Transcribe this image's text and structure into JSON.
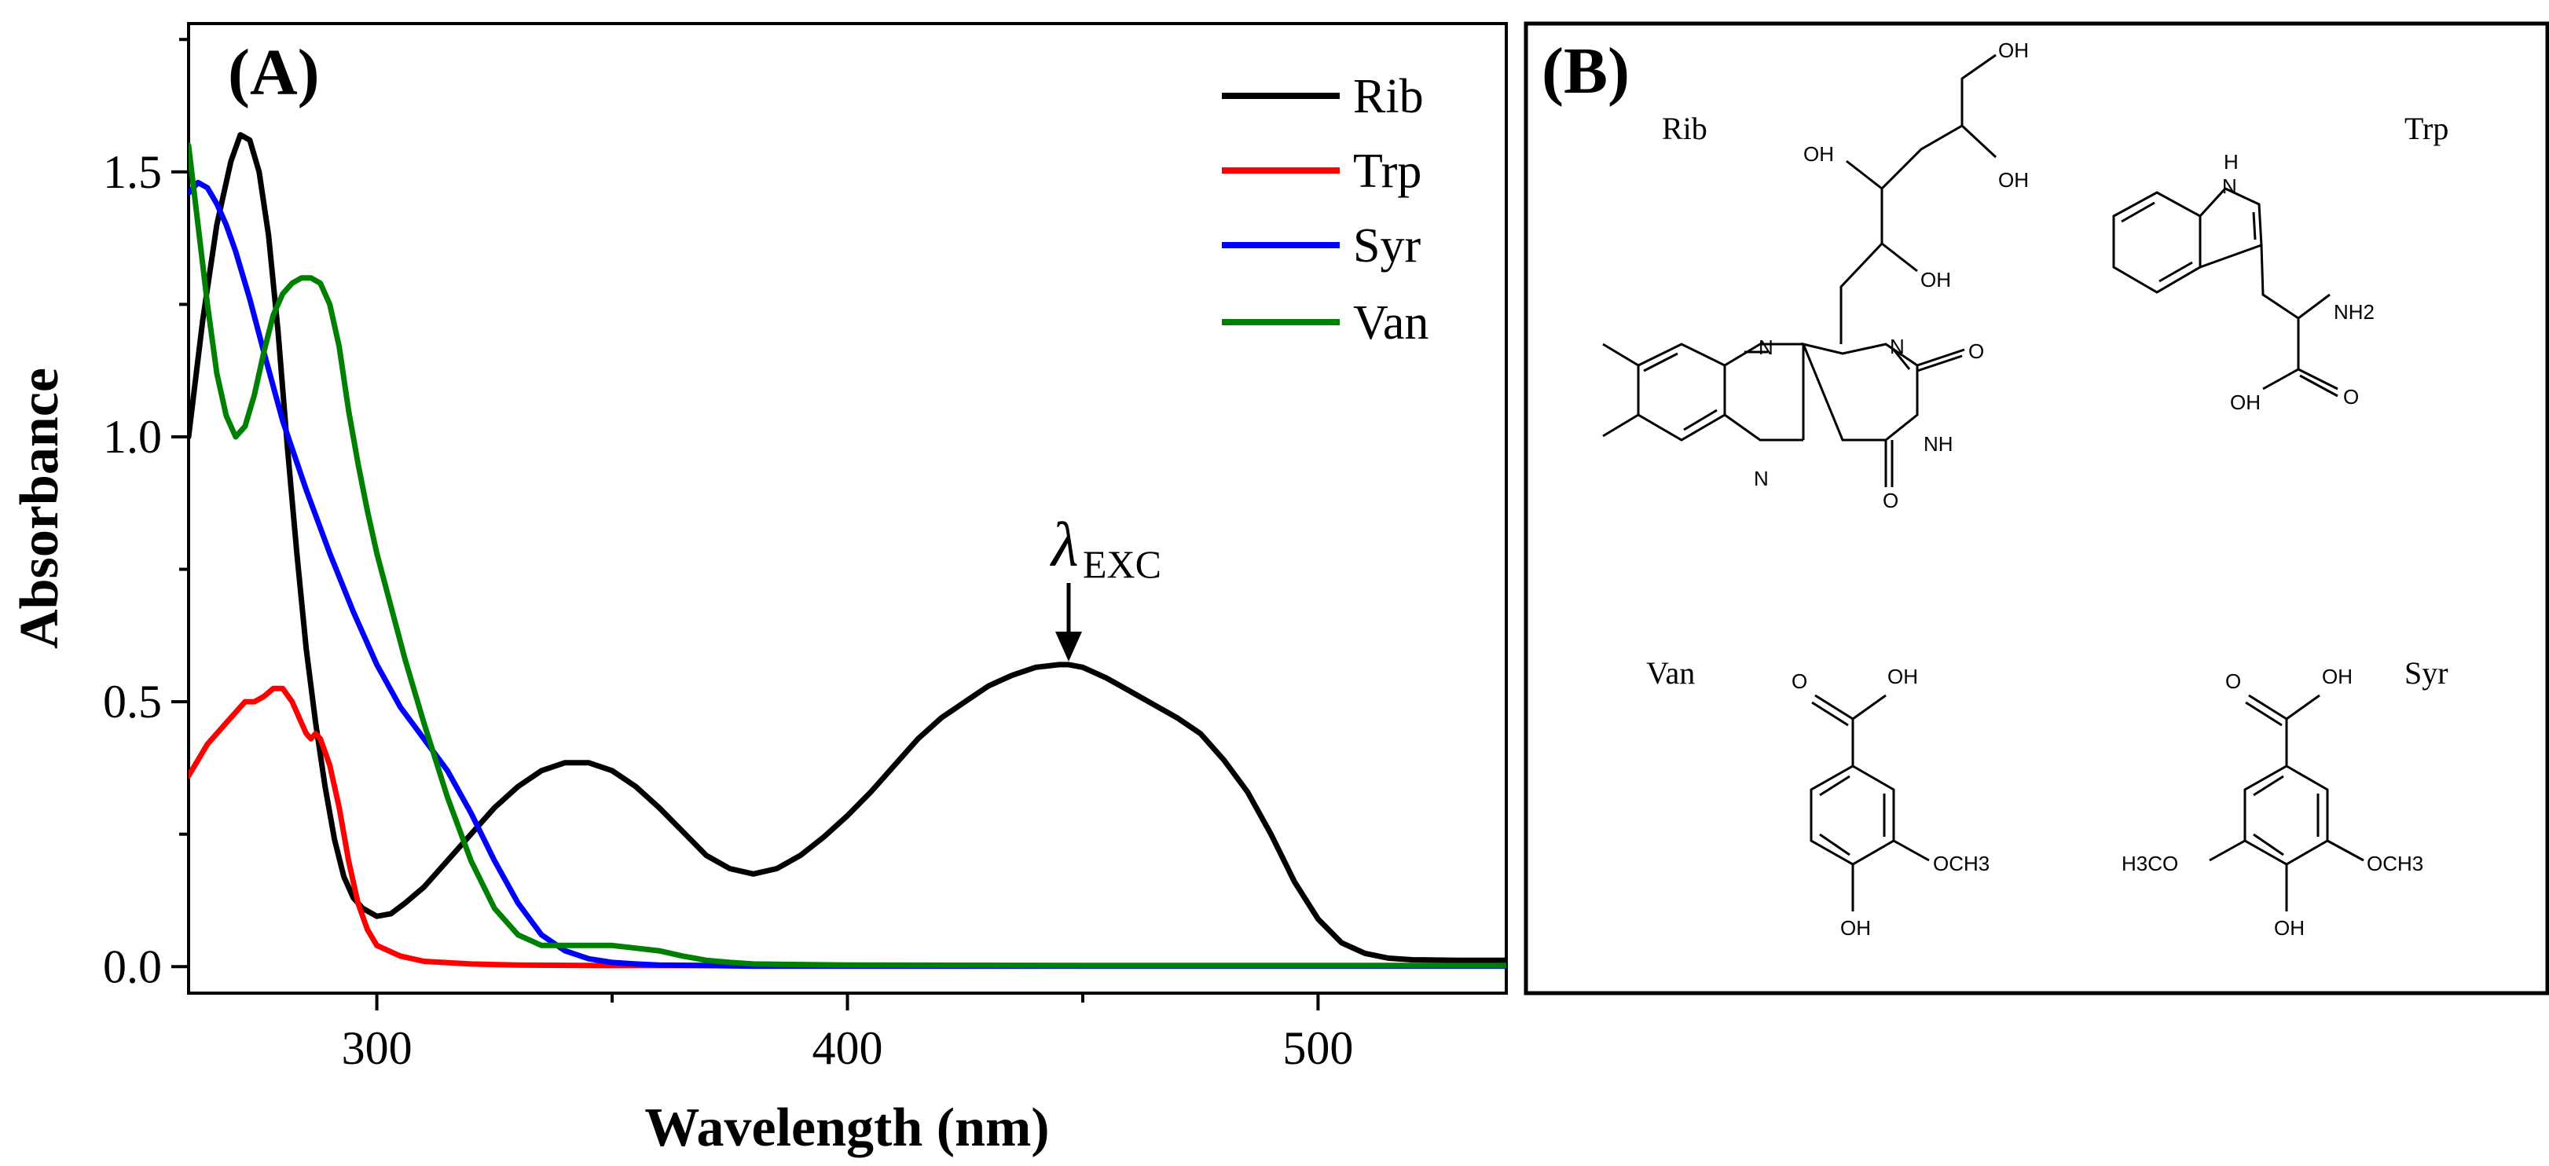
{
  "panel_a": {
    "tag": "(A)",
    "annotation": {
      "symbol": "λ",
      "subscript": "EXC",
      "x_value": 447,
      "y_value": 0.57
    }
  },
  "panel_b": {
    "tag": "(B)",
    "compounds": [
      {
        "name": "Rib",
        "atoms": [
          "OH",
          "OH",
          "OH",
          "OH",
          "N",
          "N",
          "O",
          "NH",
          "N",
          "O"
        ]
      },
      {
        "name": "Trp",
        "atoms": [
          "H",
          "N",
          "NH2",
          "OH",
          "O"
        ]
      },
      {
        "name": "Van",
        "atoms": [
          "O",
          "OH",
          "OCH3",
          "OH"
        ]
      },
      {
        "name": "Syr",
        "atoms": [
          "O",
          "OH",
          "H3CO",
          "OCH3",
          "OH"
        ]
      }
    ]
  },
  "chart_data": {
    "type": "line",
    "title": "",
    "xlabel": "Wavelength (nm)",
    "ylabel": "Absorbance",
    "xlim": [
      260,
      540
    ],
    "ylim": [
      -0.05,
      1.78
    ],
    "xticks": [
      300,
      400,
      500
    ],
    "yticks": [
      0.0,
      0.5,
      1.0,
      1.5
    ],
    "ytick_labels": [
      "0.0",
      "0.5",
      "1.0",
      "1.5"
    ],
    "legend_position": "top-right",
    "series": [
      {
        "name": "Rib",
        "color": "#000000",
        "x": [
          260,
          263,
          266,
          269,
          271,
          273,
          275,
          277,
          279,
          281,
          283,
          285,
          287,
          289,
          291,
          293,
          295,
          297,
          300,
          303,
          306,
          310,
          315,
          320,
          325,
          330,
          335,
          340,
          345,
          350,
          355,
          360,
          365,
          370,
          375,
          380,
          385,
          390,
          395,
          400,
          405,
          410,
          415,
          420,
          425,
          430,
          435,
          440,
          445,
          447,
          450,
          455,
          460,
          465,
          470,
          475,
          480,
          485,
          490,
          495,
          500,
          505,
          510,
          515,
          520,
          530,
          540
        ],
        "y": [
          1.0,
          1.22,
          1.4,
          1.52,
          1.57,
          1.56,
          1.5,
          1.38,
          1.2,
          0.98,
          0.78,
          0.6,
          0.46,
          0.34,
          0.24,
          0.17,
          0.13,
          0.11,
          0.095,
          0.1,
          0.12,
          0.15,
          0.2,
          0.25,
          0.3,
          0.34,
          0.37,
          0.385,
          0.385,
          0.37,
          0.34,
          0.3,
          0.255,
          0.21,
          0.185,
          0.175,
          0.185,
          0.21,
          0.245,
          0.285,
          0.33,
          0.38,
          0.43,
          0.47,
          0.5,
          0.53,
          0.55,
          0.565,
          0.57,
          0.57,
          0.565,
          0.545,
          0.52,
          0.495,
          0.47,
          0.44,
          0.39,
          0.33,
          0.25,
          0.16,
          0.09,
          0.045,
          0.025,
          0.016,
          0.013,
          0.012,
          0.012
        ]
      },
      {
        "name": "Trp",
        "color": "#ff0000",
        "x": [
          260,
          264,
          268,
          272,
          274,
          276,
          278,
          280,
          282,
          284,
          285,
          286,
          287,
          288,
          290,
          292,
          294,
          296,
          298,
          300,
          305,
          310,
          320,
          330,
          350,
          400,
          450,
          500,
          540
        ],
        "y": [
          0.36,
          0.42,
          0.46,
          0.5,
          0.5,
          0.51,
          0.525,
          0.525,
          0.5,
          0.46,
          0.44,
          0.43,
          0.44,
          0.43,
          0.38,
          0.3,
          0.2,
          0.12,
          0.07,
          0.04,
          0.02,
          0.01,
          0.005,
          0.003,
          0.002,
          0.002,
          0.002,
          0.002,
          0.002
        ]
      },
      {
        "name": "Syr",
        "color": "#0000ff",
        "x": [
          260,
          262,
          264,
          266,
          268,
          270,
          273,
          276,
          280,
          285,
          290,
          295,
          300,
          305,
          310,
          315,
          320,
          325,
          330,
          335,
          340,
          345,
          350,
          355,
          360,
          370,
          380,
          400,
          450,
          500,
          540
        ],
        "y": [
          1.46,
          1.48,
          1.47,
          1.44,
          1.4,
          1.35,
          1.26,
          1.16,
          1.03,
          0.9,
          0.78,
          0.67,
          0.57,
          0.49,
          0.43,
          0.37,
          0.29,
          0.2,
          0.12,
          0.06,
          0.03,
          0.015,
          0.008,
          0.005,
          0.003,
          0.002,
          0.001,
          0.001,
          0.001,
          0.001,
          0.001
        ]
      },
      {
        "name": "Van",
        "color": "#008000",
        "x": [
          260,
          262,
          264,
          266,
          268,
          270,
          272,
          274,
          276,
          278,
          280,
          282,
          284,
          286,
          288,
          290,
          292,
          294,
          296,
          298,
          300,
          303,
          306,
          310,
          315,
          320,
          325,
          330,
          335,
          340,
          345,
          350,
          355,
          360,
          365,
          370,
          375,
          380,
          390,
          400,
          450,
          500,
          540
        ],
        "y": [
          1.55,
          1.4,
          1.25,
          1.12,
          1.04,
          1.0,
          1.02,
          1.08,
          1.16,
          1.23,
          1.27,
          1.29,
          1.3,
          1.3,
          1.29,
          1.25,
          1.17,
          1.05,
          0.95,
          0.86,
          0.78,
          0.68,
          0.58,
          0.46,
          0.32,
          0.2,
          0.11,
          0.06,
          0.04,
          0.04,
          0.04,
          0.04,
          0.035,
          0.03,
          0.02,
          0.012,
          0.008,
          0.005,
          0.004,
          0.003,
          0.002,
          0.002,
          0.002
        ]
      }
    ]
  }
}
